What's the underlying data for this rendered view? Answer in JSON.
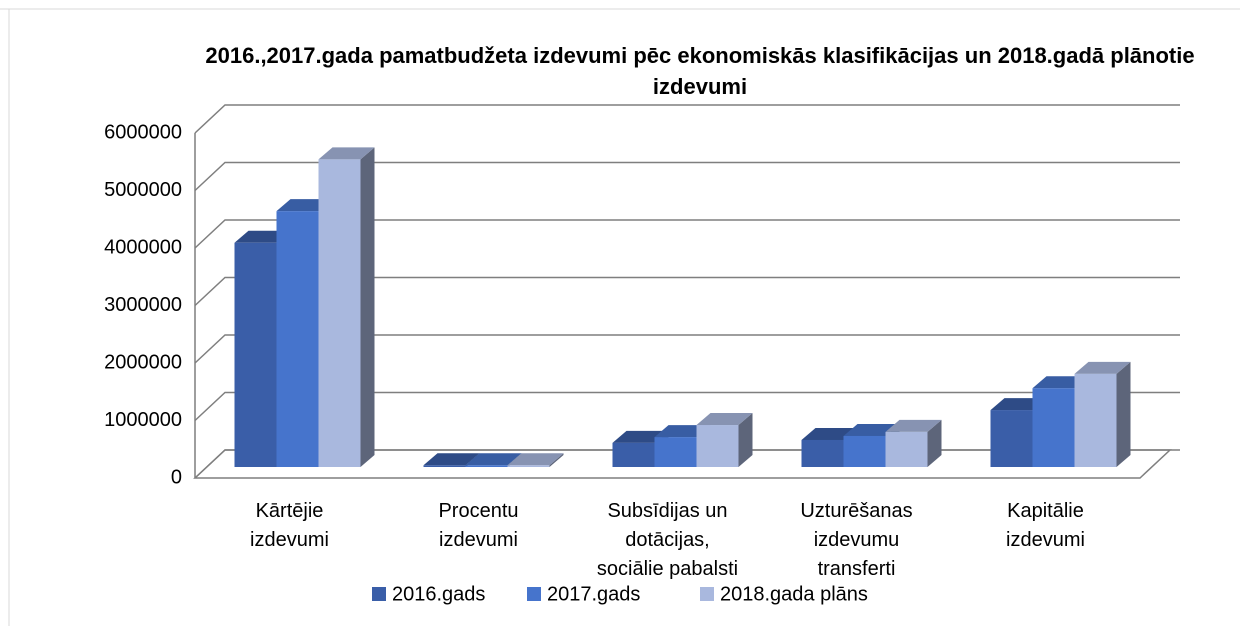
{
  "chart_data": {
    "type": "bar3d",
    "title": "2016.,2017.gada pamatbudžeta izdevumi pēc ekonomiskās klasifikācijas un 2018.gadā plānotie izdevumi",
    "categories": [
      "Kārtējie izdevumi",
      "Procentu izdevumi",
      "Subsīdijas un dotācijas, sociālie pabalsti",
      "Uzturēšanas izdevumu transferti",
      "Kapitālie izdevumi"
    ],
    "series": [
      {
        "name": "2016.gads",
        "color": "#3a5ea8",
        "values": [
          3900000,
          30000,
          420000,
          470000,
          990000
        ]
      },
      {
        "name": "2017.gads",
        "color": "#4674cc",
        "values": [
          4450000,
          30000,
          520000,
          540000,
          1370000
        ]
      },
      {
        "name": "2018.gada plāns",
        "color": "#a9b8de",
        "values": [
          5350000,
          30000,
          730000,
          610000,
          1620000
        ]
      }
    ],
    "ylim": [
      0,
      6000000
    ],
    "yticks": [
      0,
      1000000,
      2000000,
      3000000,
      4000000,
      5000000,
      6000000
    ],
    "grid": true,
    "legend": "bottom"
  }
}
